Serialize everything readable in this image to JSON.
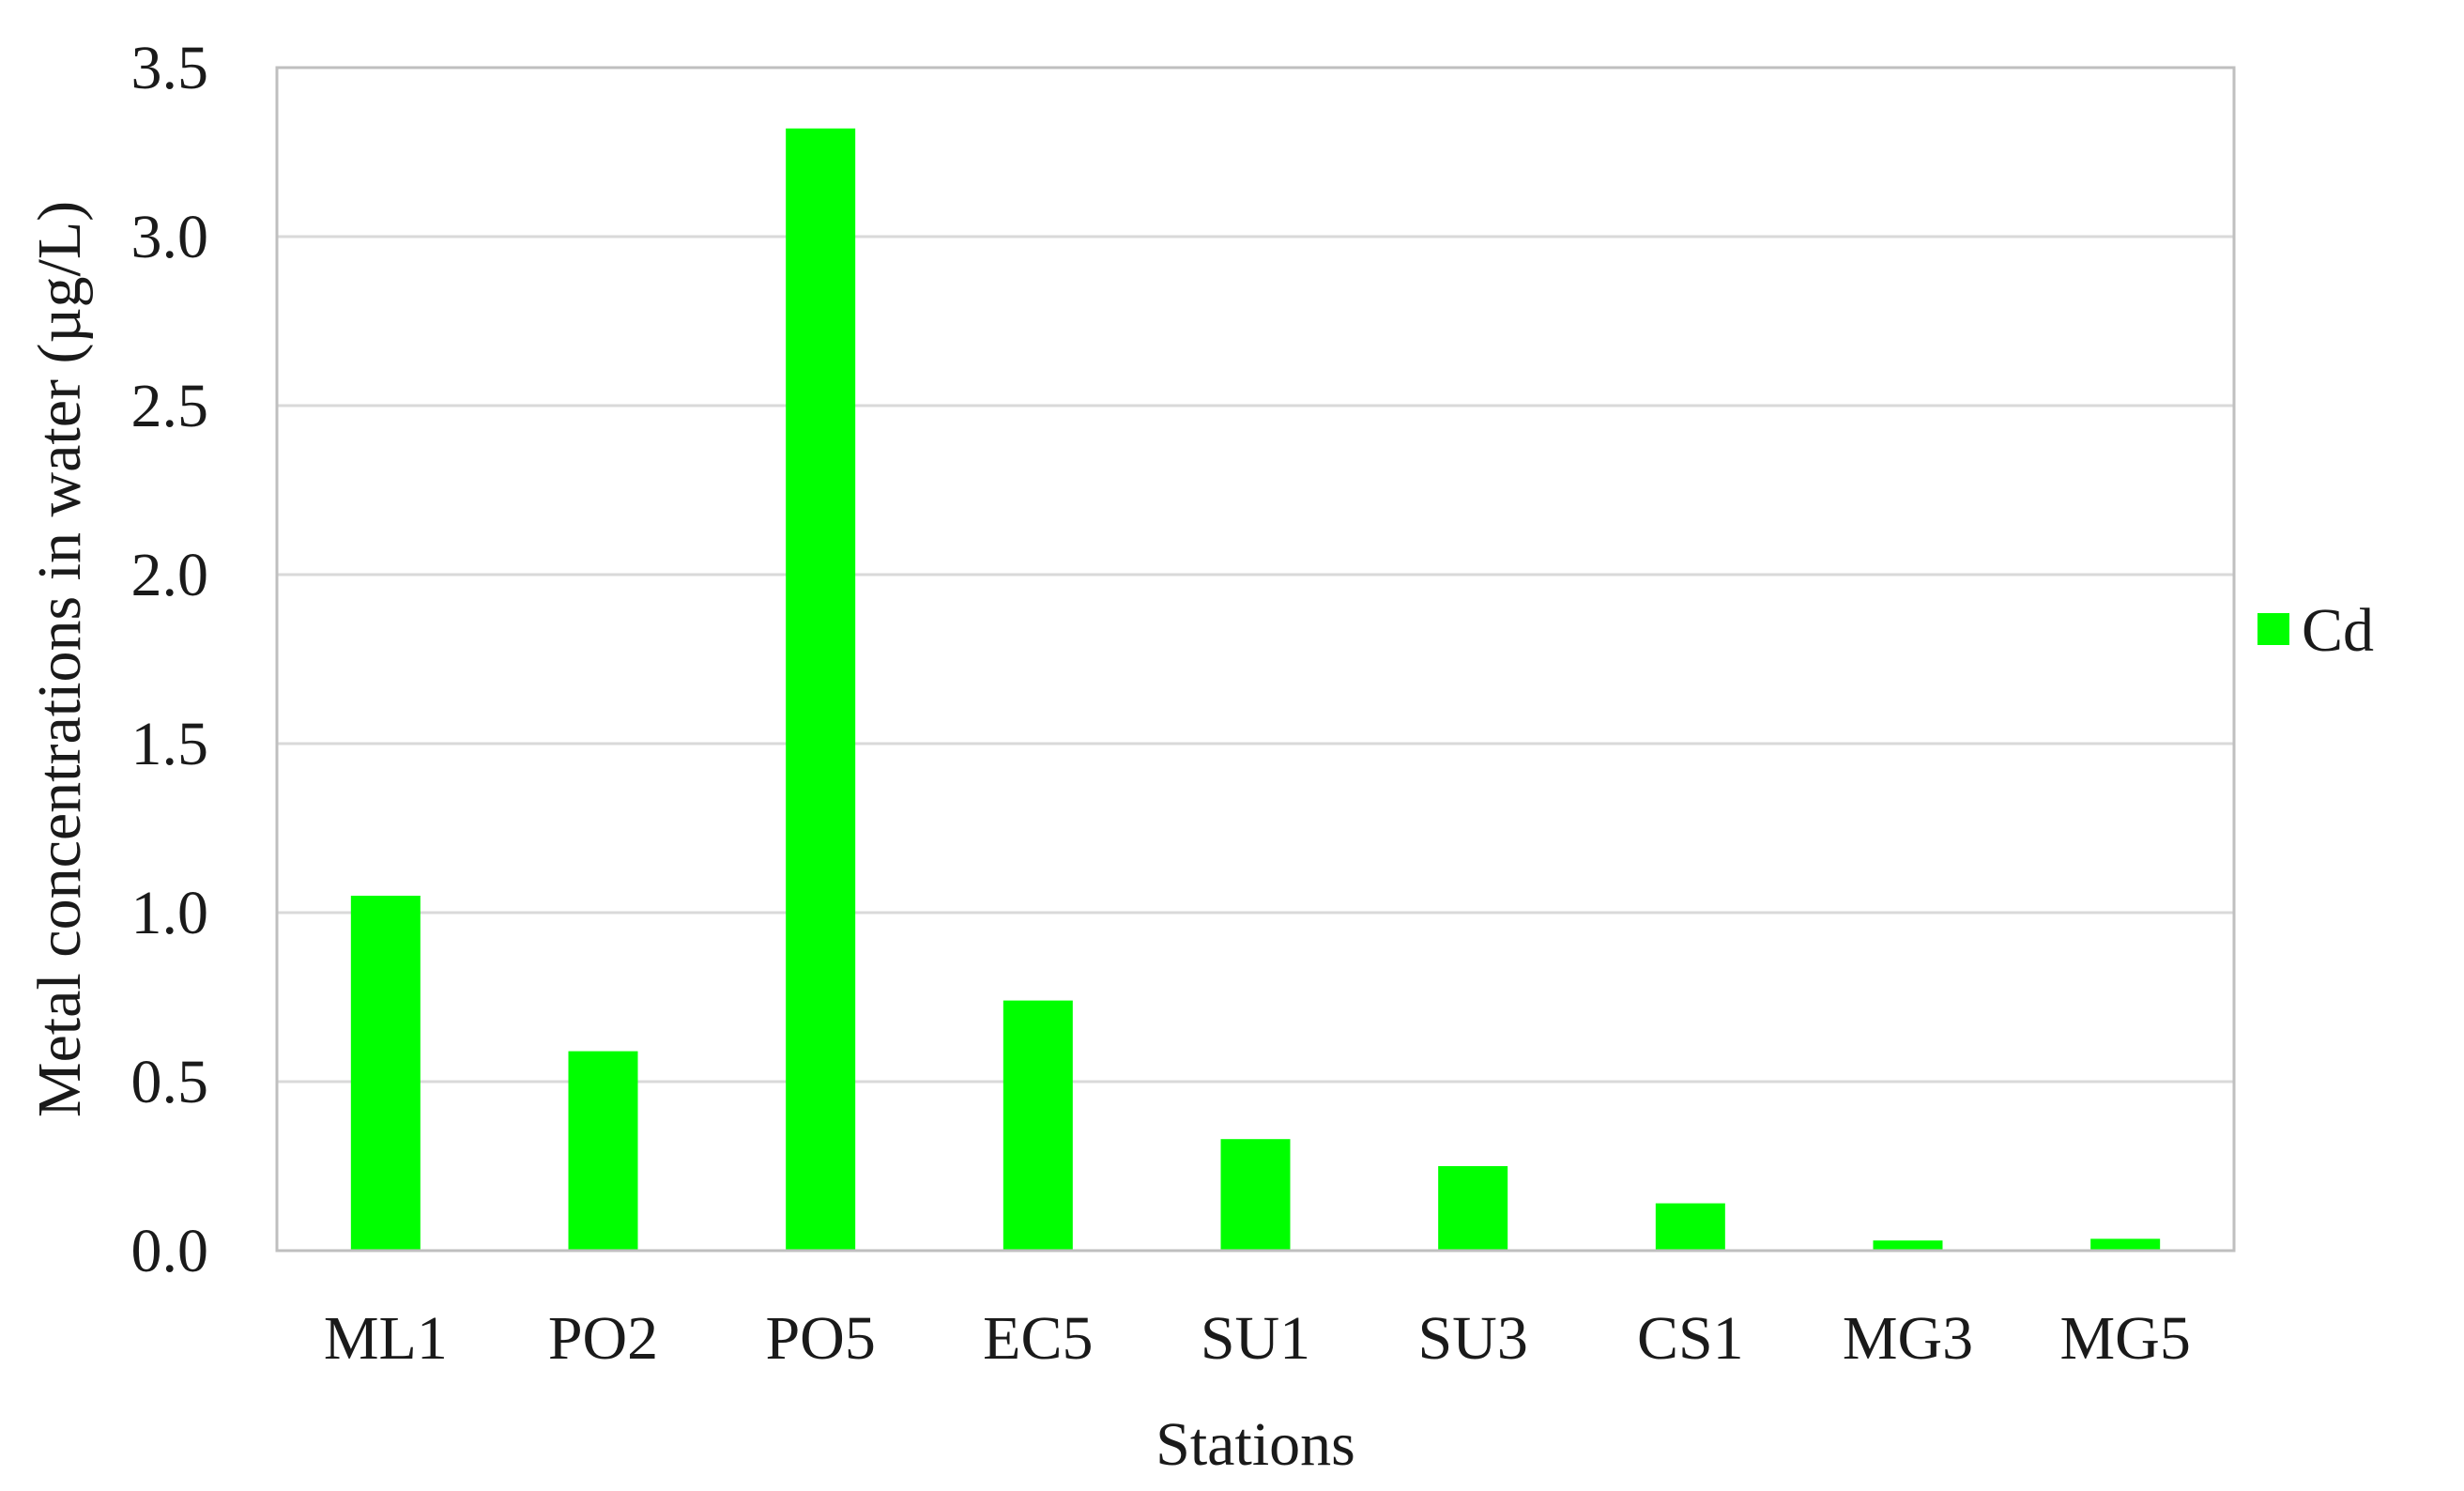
{
  "chart_data": {
    "type": "bar",
    "categories": [
      "ML1",
      "PO2",
      "PO5",
      "EC5",
      "SU1",
      "SU3",
      "CS1",
      "MG3",
      "MG5"
    ],
    "series": [
      {
        "name": "Cd",
        "values": [
          1.05,
          0.59,
          3.32,
          0.74,
          0.33,
          0.25,
          0.14,
          0.03,
          0.035
        ],
        "color": "#00FF00"
      }
    ],
    "title": "",
    "xlabel": "Stations",
    "ylabel": "Metal concentrations in water (µg/L)",
    "ylim": [
      0,
      3.5
    ],
    "yticks": [
      "0.0",
      "0.5",
      "1.0",
      "1.5",
      "2.0",
      "2.5",
      "3.0",
      "3.5"
    ],
    "grid": true,
    "legend_position": "right",
    "gridline_color": "#d9d9d9",
    "axis_color": "#bfbfbf"
  }
}
